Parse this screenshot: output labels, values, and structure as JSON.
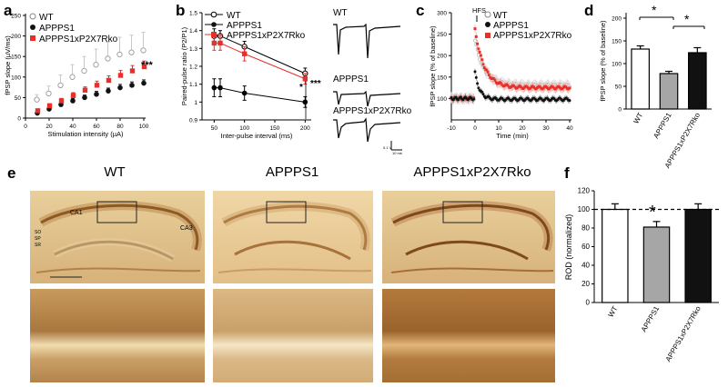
{
  "panels": {
    "a": "a",
    "b": "b",
    "c": "c",
    "d": "d",
    "e": "e",
    "f": "f"
  },
  "colors": {
    "wt": "#ffffff",
    "appps1": "#111111",
    "ko": "#e8302a",
    "bar_appps1": "#a6a6a6",
    "ko_dark": "#111111"
  },
  "chart_data": [
    {
      "id": "a",
      "type": "scatter",
      "xlabel": "Stimulation intensity (µA)",
      "ylabel": "fPSP slope (µV/ms)",
      "xlim": [
        0,
        100
      ],
      "ylim": [
        0,
        250
      ],
      "xticks": [
        0,
        20,
        40,
        60,
        80,
        100
      ],
      "yticks": [
        0,
        50,
        100,
        150,
        200,
        250
      ],
      "x": [
        10,
        20,
        30,
        40,
        50,
        60,
        70,
        80,
        90,
        100
      ],
      "legend": [
        "WT",
        "APPPS1",
        "APPPS1xP2X7Rko"
      ],
      "annotation": "***",
      "series": [
        {
          "name": "WT",
          "values": [
            45,
            60,
            80,
            100,
            115,
            130,
            145,
            155,
            160,
            165
          ],
          "err": [
            12,
            18,
            25,
            30,
            35,
            38,
            40,
            42,
            42,
            44
          ]
        },
        {
          "name": "APPPS1",
          "values": [
            12,
            22,
            33,
            42,
            50,
            58,
            66,
            74,
            80,
            85
          ],
          "err": [
            3,
            4,
            5,
            6,
            6,
            7,
            7,
            8,
            8,
            8
          ]
        },
        {
          "name": "APPPS1xP2X7Rko",
          "values": [
            18,
            30,
            42,
            55,
            68,
            80,
            92,
            104,
            115,
            125
          ],
          "err": [
            4,
            5,
            6,
            7,
            8,
            10,
            11,
            12,
            13,
            14
          ]
        }
      ]
    },
    {
      "id": "b",
      "type": "line",
      "xlabel": "Inter-pulse interval (ms)",
      "ylabel": "Paired-pulse ratio (P2/P1)",
      "xlim": [
        30,
        210
      ],
      "ylim": [
        0.9,
        1.5
      ],
      "xticks": [
        50,
        100,
        150,
        200
      ],
      "yticks": [
        0.9,
        1.0,
        1.1,
        1.2,
        1.3,
        1.4,
        1.5
      ],
      "x": [
        50,
        60,
        100,
        200
      ],
      "legend": [
        "WT",
        "APPPS1",
        "APPPS1xP2X7Rko"
      ],
      "annotations": [
        "*",
        "***"
      ],
      "series": [
        {
          "name": "WT",
          "values": [
            1.37,
            1.37,
            1.31,
            1.16
          ],
          "err": [
            0.04,
            0.03,
            0.03,
            0.03
          ]
        },
        {
          "name": "APPPS1",
          "values": [
            1.08,
            1.08,
            1.05,
            1.0
          ],
          "err": [
            0.05,
            0.05,
            0.04,
            0.03
          ]
        },
        {
          "name": "APPPS1xP2X7Rko",
          "values": [
            1.33,
            1.33,
            1.27,
            1.13
          ],
          "err": [
            0.04,
            0.04,
            0.04,
            0.03
          ]
        }
      ]
    },
    {
      "id": "b-traces",
      "type": "line",
      "trace_labels": [
        "WT",
        "APPPS1",
        "APPPS1xP2X7Rko"
      ],
      "scale_label": "0.1 V",
      "scale_time": "10 ms"
    },
    {
      "id": "c",
      "type": "scatter",
      "xlabel": "Time (min)",
      "ylabel": "fPSP slope (% of baseline)",
      "xlim": [
        -10,
        40
      ],
      "ylim": [
        50,
        300
      ],
      "xticks": [
        -10,
        0,
        10,
        20,
        30,
        40
      ],
      "yticks": [
        100,
        150,
        200,
        250,
        300
      ],
      "annotation": "HFS",
      "legend": [
        "WT",
        "APPPS1",
        "APPPS1xP2X7Rko"
      ],
      "series": [
        {
          "name": "WT",
          "baseline": 100,
          "peak": 235,
          "plateau": 130,
          "tau": 4
        },
        {
          "name": "APPPS1",
          "baseline": 100,
          "peak": 160,
          "plateau": 98,
          "tau": 2
        },
        {
          "name": "APPPS1xP2X7Rko",
          "baseline": 100,
          "peak": 260,
          "plateau": 125,
          "tau": 4
        }
      ]
    },
    {
      "id": "d",
      "type": "bar",
      "ylabel": "fPSP slope (% of baseline)",
      "ylim": [
        0,
        200
      ],
      "yticks": [
        0,
        50,
        100,
        150,
        200
      ],
      "categories": [
        "WT",
        "APPPS1",
        "APPPS1xP2X7Rko"
      ],
      "values": [
        132,
        78,
        124
      ],
      "err": [
        7,
        5,
        11
      ],
      "annotations": [
        "*",
        "*"
      ]
    },
    {
      "id": "f",
      "type": "bar",
      "ylabel": "ROD (normalized)",
      "ylim": [
        0,
        120
      ],
      "yticks": [
        0,
        20,
        40,
        60,
        80,
        100,
        120
      ],
      "categories": [
        "WT",
        "APPPS1",
        "APPPS1xP2X7Rko"
      ],
      "values": [
        100,
        81,
        100
      ],
      "err": [
        6,
        6,
        6
      ],
      "reference_line": 100,
      "annotation": "*"
    }
  ],
  "panel_e": {
    "titles": [
      "WT",
      "APPPS1",
      "APPPS1xP2X7Rko"
    ],
    "region_labels": [
      "CA1",
      "CA3",
      "SO",
      "SP",
      "SR"
    ]
  }
}
